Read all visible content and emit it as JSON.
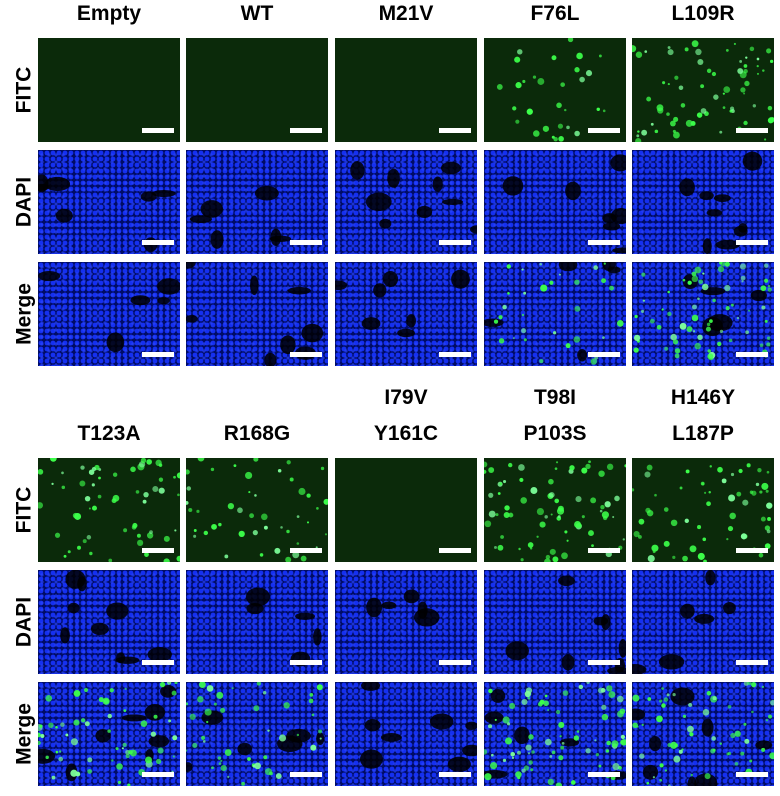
{
  "blocks": [
    {
      "columns": [
        [
          "Empty"
        ],
        [
          "WT"
        ],
        [
          "M21V"
        ],
        [
          "F76L"
        ],
        [
          "L109R"
        ]
      ],
      "rows": [
        "FITC",
        "DAPI",
        "Merge"
      ]
    },
    {
      "columns": [
        [
          "T123A"
        ],
        [
          "R168G"
        ],
        [
          "I79V",
          "Y161C"
        ],
        [
          "T98I",
          "P103S"
        ],
        [
          "H146Y",
          "L187P"
        ]
      ],
      "rows": [
        "FITC",
        "DAPI",
        "Merge"
      ]
    }
  ]
}
